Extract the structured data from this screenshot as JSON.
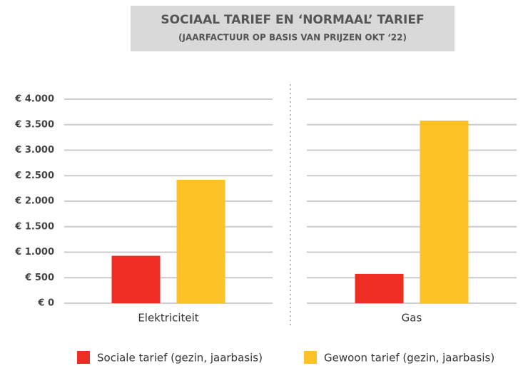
{
  "chart_data": {
    "type": "bar",
    "title": "SOCIAAL TARIEF EN ‘NORMAAL’ TARIEF",
    "subtitle": "(JAARFACTUUR OP BASIS VAN PRIJZEN OKT ‘22)",
    "categories": [
      "Elektriciteit",
      "Gas"
    ],
    "series": [
      {
        "name": "Sociale tarief (gezin, jaarbasis)",
        "color": "#ee2e24",
        "values": [
          930,
          575
        ]
      },
      {
        "name": "Gewoon tarief (gezin, jaarbasis)",
        "color": "#fdc228",
        "values": [
          2420,
          3580
        ]
      }
    ],
    "ylim": [
      0,
      4000
    ],
    "yticks": [
      {
        "value": 0,
        "label": "€ 0"
      },
      {
        "value": 500,
        "label": "€ 500"
      },
      {
        "value": 1000,
        "label": "€ 1.000"
      },
      {
        "value": 1500,
        "label": "€ 1.500"
      },
      {
        "value": 2000,
        "label": "€ 2.000"
      },
      {
        "value": 2500,
        "label": "€ 2.500"
      },
      {
        "value": 3000,
        "label": "€ 3.000"
      },
      {
        "value": 3500,
        "label": "€ 3.500"
      },
      {
        "value": 4000,
        "label": "€ 4.000"
      }
    ],
    "grid": true
  }
}
